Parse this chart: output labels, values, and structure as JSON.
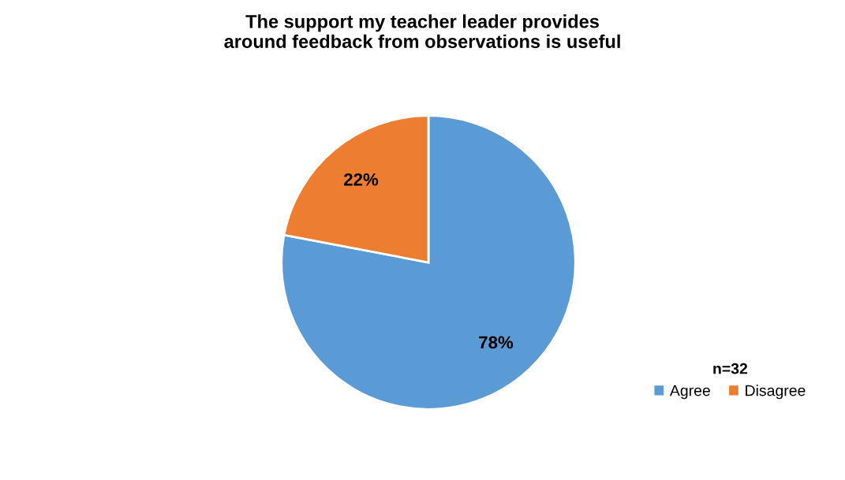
{
  "chart_data": {
    "type": "pie",
    "title": "The support my teacher leader provides\naround feedback from observations is useful",
    "categories": [
      "Agree",
      "Disagree"
    ],
    "values": [
      78,
      22
    ],
    "colors": [
      "#5b9bd5",
      "#ed7d31"
    ],
    "value_labels": [
      "78%",
      "22%"
    ],
    "legend_title": "n=32",
    "legend": "bottom right"
  }
}
